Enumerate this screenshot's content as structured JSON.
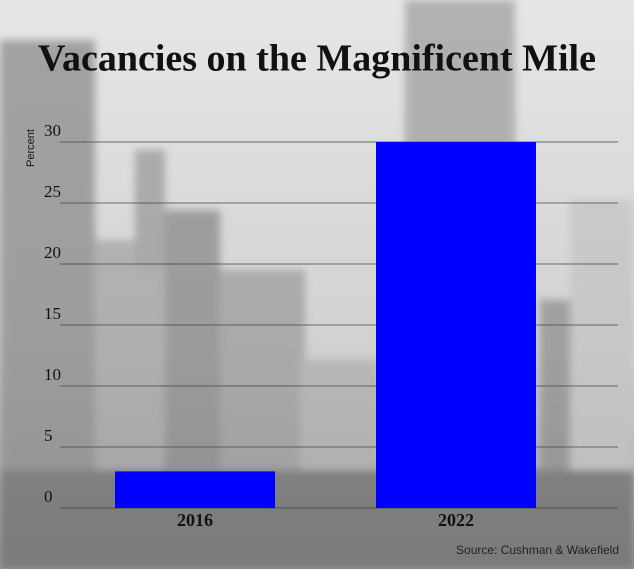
{
  "chart_data": {
    "type": "bar",
    "title": "Vacancies on the Magnificent Mile",
    "y_label": "Percent",
    "categories": [
      "2016",
      "2022"
    ],
    "values": [
      3,
      30
    ],
    "color": "#0000ff",
    "ylim": [
      0,
      30
    ],
    "yticks": [
      0,
      5,
      10,
      15,
      20,
      25,
      30
    ],
    "grid": true,
    "source": "Source: Cushman & Wakefield"
  }
}
